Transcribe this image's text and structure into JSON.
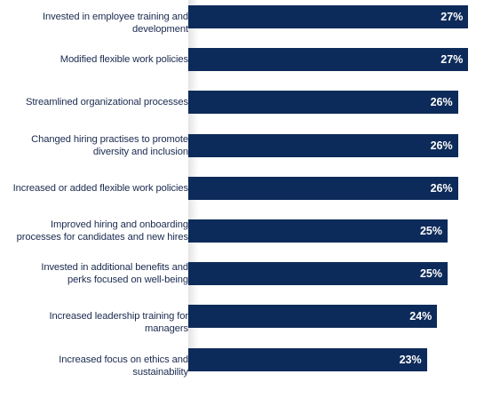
{
  "chart_data": {
    "type": "bar",
    "orientation": "horizontal",
    "categories": [
      "Invested in employee training and development",
      "Modified flexible work policies",
      "Streamlined organizational processes",
      "Changed hiring practises to promote diversity and inclusion",
      "Increased or added flexible work policies",
      "Improved hiring and onboarding processes for candidates and new hires",
      "Invested in additional benefits and perks focused on well-being",
      "Increased leadership training for managers",
      "Increased focus on ethics and sustainability"
    ],
    "category_lines": [
      [
        "Invested in employee training and development"
      ],
      [
        "Modified flexible work policies"
      ],
      [
        "Streamlined organizational processes"
      ],
      [
        "Changed hiring practises to promote",
        "diversity and inclusion"
      ],
      [
        "Increased or added flexible work policies"
      ],
      [
        "Improved hiring and onboarding",
        "processes for candidates and new hires"
      ],
      [
        "Invested in additional benefits and",
        "perks focused on well-being"
      ],
      [
        "Increased leadership training for managers"
      ],
      [
        "Increased focus on ethics and sustainability"
      ]
    ],
    "values": [
      27,
      27,
      26,
      26,
      26,
      25,
      25,
      24,
      23
    ],
    "value_labels": [
      "27%",
      "27%",
      "26%",
      "26%",
      "26%",
      "25%",
      "25%",
      "24%",
      "23%"
    ],
    "xlim": [
      0,
      27.4
    ],
    "grid": false,
    "legend": "none",
    "bar_color": "#0d2b5a",
    "label_color": "#1a2a4f",
    "value_label_color": "#ffffff"
  }
}
